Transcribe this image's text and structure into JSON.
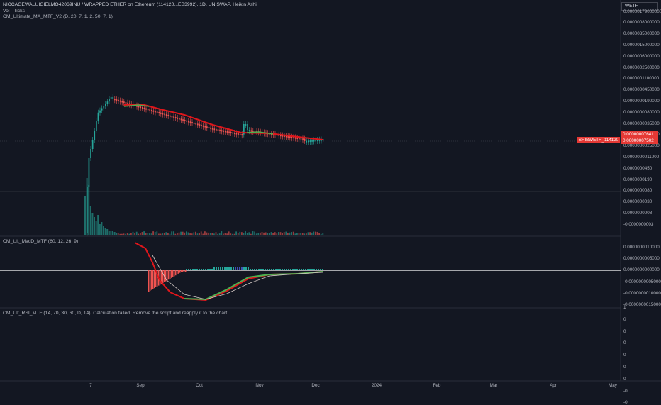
{
  "header": {
    "title": "NICCAGEWALUIGIELMO42069INU / WRAPPED ETHER on Ethereum (114120...EB3992), 1D, UNISWAP, Heikin Ashi",
    "vol_label": "Vol · Ticks",
    "ma_indicator": "CM_Ultimate_MA_MTF_V2 (D, 20, 7, 1, 2, 50, 7, 1)"
  },
  "macd_pane": {
    "label": "CM_Ult_MacD_MTF (60, 12, 26, 9)"
  },
  "rsi_pane": {
    "label": "CM_Ult_RSI_MTF (14, 70, 30, 60, D, 14): Calculation failed. Remove the script and reapply it to the chart."
  },
  "currency": "WETH",
  "price_axis": [
    "0.0000017900000000",
    "0.0000008000000",
    "0.0000035000000",
    "0.0000015000000",
    "0.0000006000000",
    "0.0000002500000",
    "0.0000001100000",
    "0.0000000450000",
    "0.0000000190000",
    "0.0000000080000",
    "0.0000000035000",
    "0.0000000015000",
    "0.0000000025000",
    "0.0000000011000",
    "0.0000000450",
    "0.0000000190",
    "0.0000000080",
    "0.0000000030",
    "0.0000000008",
    "-0.0000000003",
    "-0.0000000015000"
  ],
  "price_tags": {
    "upper": "0.00000007641",
    "lower": "0.00000007502",
    "symbol": "SHIBWETH_114120"
  },
  "macd_axis": [
    "0.0000000010000",
    "0.0000000005000",
    "0.0000000000000",
    "-0.0000000005000",
    "-0.0000000010000",
    "-0.0000000015000"
  ],
  "rsi_axis": [
    "1",
    "0",
    "0",
    "0",
    "0",
    "0",
    "0",
    "-0",
    "-0"
  ],
  "time_axis": [
    "7",
    "Sep",
    "Oct",
    "Nov",
    "Dec",
    "2024",
    "Feb",
    "Mar",
    "Apr",
    "May"
  ],
  "colors": {
    "background": "#131722",
    "up": "#26a69a",
    "down": "#ef5350",
    "ma": "#e0161b",
    "macd_signal": "#ffffff"
  }
}
